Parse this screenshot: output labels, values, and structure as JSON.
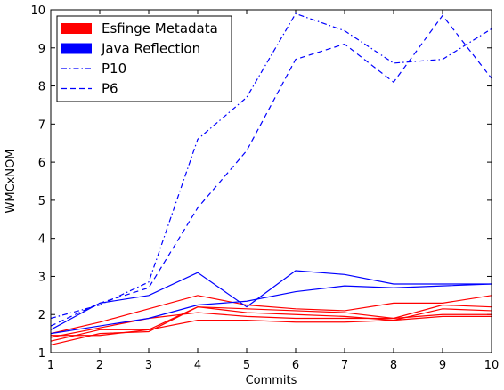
{
  "chart_data": {
    "type": "line",
    "xlabel": "Commits",
    "ylabel": "WMCxNOM",
    "xlim": [
      1,
      10
    ],
    "ylim": [
      1,
      10
    ],
    "xticks": [
      1,
      2,
      3,
      4,
      5,
      6,
      7,
      8,
      9,
      10
    ],
    "yticks": [
      1,
      2,
      3,
      4,
      5,
      6,
      7,
      8,
      9,
      10
    ],
    "grid": false,
    "legend_position": "top-left",
    "legend": [
      {
        "label": "Esfinge Metadata",
        "style": "patch",
        "color": "#ff0000"
      },
      {
        "label": "Java Reflection",
        "style": "patch",
        "color": "#0000ff"
      },
      {
        "label": "P10",
        "style": "dashdot",
        "color": "#0000ff"
      },
      {
        "label": "P6",
        "style": "dashed",
        "color": "#0000ff"
      }
    ],
    "x": [
      1,
      2,
      3,
      4,
      5,
      6,
      7,
      8,
      9,
      10
    ],
    "series": [
      {
        "group": "Esfinge Metadata",
        "color": "#ff0000",
        "dash": "solid",
        "values": [
          1.2,
          1.5,
          1.55,
          2.2,
          2.15,
          2.1,
          2.05,
          1.9,
          2.25,
          2.2
        ]
      },
      {
        "group": "Esfinge Metadata",
        "color": "#ff0000",
        "dash": "solid",
        "values": [
          1.3,
          1.6,
          1.6,
          2.2,
          2.05,
          2.0,
          1.95,
          1.85,
          2.15,
          2.1
        ]
      },
      {
        "group": "Esfinge Metadata",
        "color": "#ff0000",
        "dash": "solid",
        "values": [
          1.4,
          1.65,
          1.9,
          2.05,
          1.95,
          1.9,
          1.9,
          1.9,
          2.0,
          2.0
        ]
      },
      {
        "group": "Esfinge Metadata",
        "color": "#ff0000",
        "dash": "solid",
        "values": [
          1.45,
          1.45,
          1.6,
          1.85,
          1.85,
          1.8,
          1.8,
          1.85,
          1.95,
          1.95
        ]
      },
      {
        "group": "Esfinge Metadata",
        "color": "#ff0000",
        "dash": "solid",
        "values": [
          1.5,
          1.8,
          2.15,
          2.5,
          2.25,
          2.15,
          2.1,
          2.3,
          2.3,
          2.5
        ]
      },
      {
        "group": "Java Reflection",
        "color": "#0000ff",
        "dash": "solid",
        "values": [
          1.6,
          2.3,
          2.5,
          3.1,
          2.2,
          3.15,
          3.05,
          2.8,
          2.8,
          2.8
        ]
      },
      {
        "group": "Java Reflection",
        "color": "#0000ff",
        "dash": "solid",
        "values": [
          1.5,
          1.7,
          1.9,
          2.25,
          2.35,
          2.6,
          2.75,
          2.7,
          2.75,
          2.8
        ]
      },
      {
        "name": "P10",
        "color": "#0000ff",
        "dash": "dashdot",
        "values": [
          1.9,
          2.25,
          2.85,
          6.6,
          7.7,
          9.9,
          9.45,
          8.6,
          8.7,
          9.5
        ]
      },
      {
        "name": "P6",
        "color": "#0000ff",
        "dash": "dashed",
        "values": [
          1.7,
          2.3,
          2.7,
          4.8,
          6.3,
          8.7,
          9.1,
          8.1,
          9.85,
          8.2
        ]
      }
    ]
  }
}
